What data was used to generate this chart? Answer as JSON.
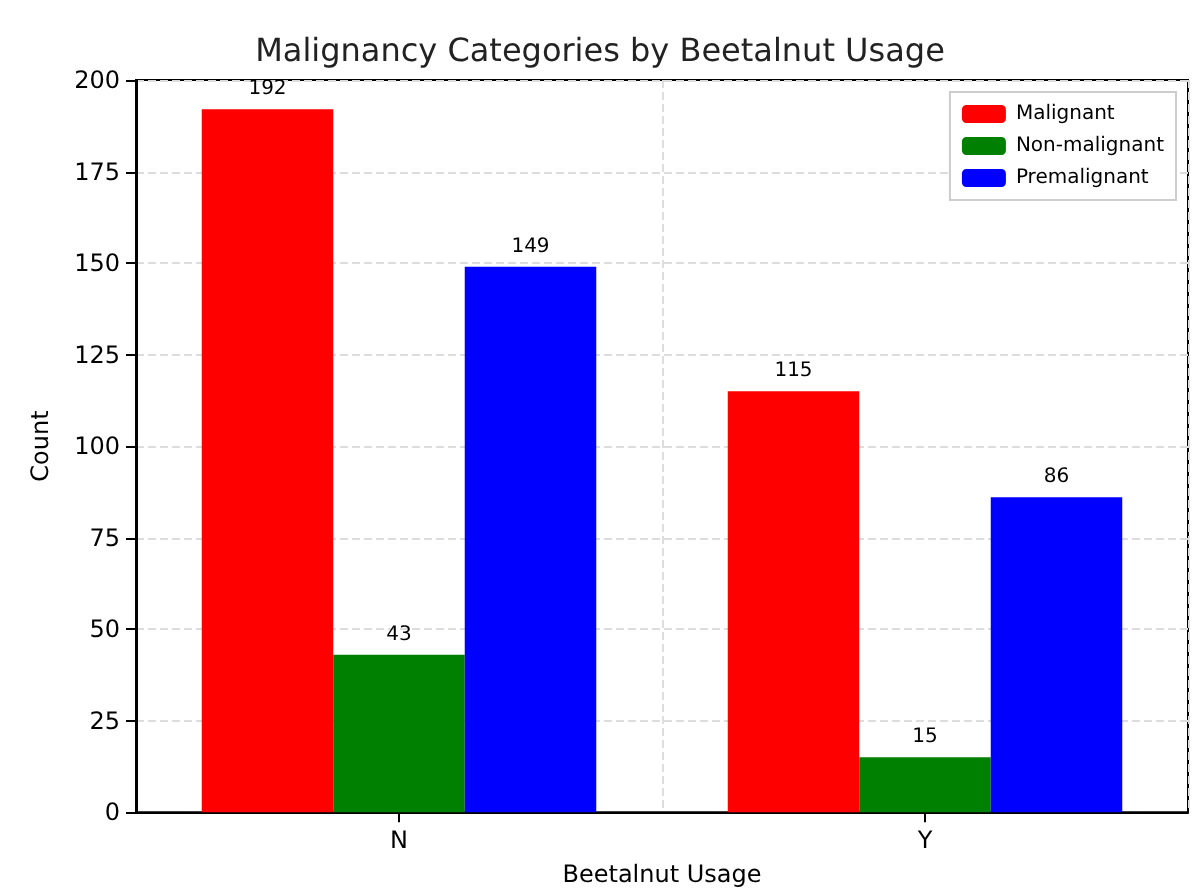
{
  "chart_data": {
    "type": "bar",
    "title": "Malignancy Categories by Beetalnut Usage",
    "xlabel": "Beetalnut Usage",
    "ylabel": "Count",
    "categories": [
      "N",
      "Y"
    ],
    "series": [
      {
        "name": "Malignant",
        "color": "#ff0000",
        "values": [
          192,
          115
        ]
      },
      {
        "name": "Non-malignant",
        "color": "#008000",
        "values": [
          43,
          15
        ]
      },
      {
        "name": "Premalignant",
        "color": "#0000ff",
        "values": [
          149,
          86
        ]
      }
    ],
    "ylim": [
      0,
      200
    ],
    "yticks": [
      0,
      25,
      50,
      75,
      100,
      125,
      150,
      175,
      200
    ],
    "grid": true,
    "legend": "top right",
    "data_labels": true
  }
}
